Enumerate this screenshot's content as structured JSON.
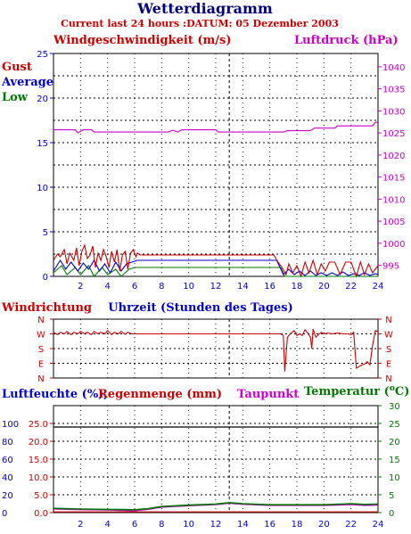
{
  "header": {
    "title": "Wetterdiagramm",
    "subtitle": "Current last 24 hours :DATUM: 05 Dezember 2003"
  },
  "colors": {
    "gust": "#cc0000",
    "average": "#0000cc",
    "low": "#007700",
    "pressure": "#cc00cc",
    "direction": "#cc0000",
    "humidity": "#0000cc",
    "rain": "#cc0000",
    "dewpoint": "#cc00cc",
    "temperature": "#007700"
  },
  "chart_data": [
    {
      "type": "line",
      "title": "",
      "labels": {
        "left_title": "Windgeschwindigkeit (m/s)",
        "right_title": "Luftdruck (hPa)",
        "legend_gust": "Gust",
        "legend_average": "Average",
        "legend_low": "Low"
      },
      "x_ticks": [
        "2",
        "4",
        "6",
        "8",
        "10",
        "12",
        "14",
        "16",
        "18",
        "20",
        "22",
        "24"
      ],
      "xlim": [
        0,
        24
      ],
      "left_ticks": [
        "0",
        "5",
        "10",
        "15",
        "20",
        "25"
      ],
      "ylim_left": [
        0,
        25
      ],
      "right_ticks": [
        "995",
        "1000",
        "1005",
        "1010",
        "1015",
        "1020",
        "1025",
        "1030",
        "1035",
        "1040"
      ],
      "ylim_right": [
        992.5,
        1043
      ],
      "grid": true,
      "series": [
        {
          "name": "Gust",
          "axis": "left",
          "x": [
            0,
            0.3,
            0.5,
            0.8,
            1.0,
            1.2,
            1.5,
            1.7,
            1.9,
            2.1,
            2.3,
            2.5,
            2.7,
            2.9,
            3.1,
            3.3,
            3.5,
            3.7,
            3.9,
            4.1,
            4.3,
            4.5,
            4.7,
            4.9,
            5.1,
            5.3,
            5.5,
            5.7,
            5.9,
            6.1,
            6.2,
            6.4,
            16.3,
            16.6,
            16.9,
            17.2,
            17.4,
            17.7,
            18.0,
            18.3,
            18.6,
            18.9,
            19.2,
            19.5,
            19.8,
            20.1,
            20.4,
            20.8,
            21.2,
            21.6,
            22.0,
            22.4,
            22.7,
            23.0,
            23.3,
            23.6,
            24.0
          ],
          "y": [
            1.8,
            2.5,
            2.2,
            3.0,
            1.4,
            2.6,
            1.8,
            3.2,
            1.2,
            2.8,
            3.5,
            2.0,
            2.4,
            3.4,
            1.0,
            2.6,
            1.8,
            3.0,
            2.2,
            1.0,
            2.8,
            1.6,
            3.0,
            0.6,
            2.4,
            2.8,
            0.8,
            2.6,
            3.0,
            2.2,
            2.6,
            2.4,
            2.4,
            1.6,
            1.0,
            0.2,
            1.4,
            0.4,
            1.2,
            0,
            1.6,
            0.4,
            1.8,
            0.2,
            1.4,
            0.6,
            1.6,
            1.6,
            0.2,
            1.6,
            1.6,
            0,
            1.6,
            0.2,
            1.4,
            0.4,
            1.2
          ]
        },
        {
          "name": "Average",
          "axis": "left",
          "x": [
            0,
            0.5,
            0.9,
            1.3,
            1.8,
            2.2,
            2.6,
            3.0,
            3.4,
            3.8,
            4.2,
            4.6,
            5.0,
            5.4,
            5.8,
            6.2,
            6.4,
            16.5,
            17.0,
            17.4,
            17.8,
            18.2,
            18.6,
            19.0,
            19.4,
            19.8,
            20.2,
            20.6,
            21.0,
            21.4,
            21.8,
            22.2,
            22.6,
            23.0,
            23.4,
            23.8,
            24.0
          ],
          "y": [
            0.6,
            1.8,
            0.8,
            1.6,
            0.6,
            1.5,
            0.8,
            1.8,
            0.6,
            1.4,
            0.4,
            1.6,
            0.6,
            1.4,
            1.6,
            1.8,
            1.8,
            1.8,
            0.2,
            0.8,
            0.2,
            0.6,
            0.1,
            0.6,
            0.1,
            0.4,
            0.1,
            0.4,
            0.1,
            0.5,
            0.1,
            0.3,
            0.1,
            0.4,
            0.1,
            0.3,
            0.2
          ]
        },
        {
          "name": "Low",
          "axis": "left",
          "x": [
            0,
            0.6,
            1.0,
            1.6,
            2.0,
            2.6,
            3.0,
            3.6,
            4.0,
            4.6,
            5.0,
            5.6,
            6.0,
            6.4,
            16.8,
            17.1,
            17.4,
            24.0
          ],
          "y": [
            0.4,
            1.2,
            0.2,
            1.0,
            0.2,
            1.2,
            0,
            1.0,
            0.2,
            0.8,
            0,
            0.8,
            1.0,
            1.0,
            1.0,
            0,
            0,
            0
          ]
        },
        {
          "name": "Luftdruck",
          "axis": "right",
          "x": [
            0,
            1.6,
            1.8,
            2.2,
            2.8,
            3.0,
            8.5,
            8.8,
            9.2,
            9.5,
            12.0,
            12.2,
            17.0,
            17.3,
            19.0,
            19.3,
            20.8,
            21.0,
            23.6,
            23.8,
            24.0
          ],
          "y": [
            1025.7,
            1025.7,
            1025.0,
            1025.7,
            1025.7,
            1025.2,
            1025.2,
            1025.6,
            1025.2,
            1025.7,
            1025.7,
            1025.2,
            1025.2,
            1025.5,
            1025.5,
            1026.1,
            1026.1,
            1026.6,
            1026.6,
            1027.4,
            1027.4
          ]
        }
      ]
    },
    {
      "type": "line",
      "title": "",
      "labels": {
        "left_title": "Windrichtung",
        "center_title": "Uhrzeit (Stunden des Tages)"
      },
      "xlim": [
        0,
        24
      ],
      "dir_ticks": [
        "N",
        "W",
        "S",
        "E",
        "N"
      ],
      "ylim": [
        0,
        360
      ],
      "grid": true,
      "series": [
        {
          "name": "Windrichtung",
          "x": [
            0,
            0.3,
            0.5,
            0.8,
            1.0,
            1.3,
            1.5,
            1.8,
            2.0,
            2.3,
            2.5,
            2.8,
            3.0,
            3.3,
            3.5,
            3.8,
            4.0,
            4.3,
            4.5,
            4.8,
            5.0,
            5.3,
            5.5,
            5.8,
            6.0,
            6.5,
            16.8,
            17.0,
            17.1,
            17.3,
            17.5,
            17.8,
            18.0,
            18.2,
            18.4,
            18.6,
            18.8,
            19.0,
            19.1,
            19.2,
            19.4,
            19.6,
            19.8,
            20.0,
            20.3,
            20.6,
            21.0,
            21.4,
            21.8,
            22.0,
            22.2,
            22.4,
            22.6,
            22.8,
            23.0,
            23.2,
            23.4,
            23.6,
            23.8,
            24.0
          ],
          "y": [
            280,
            265,
            280,
            270,
            285,
            265,
            280,
            270,
            285,
            270,
            280,
            265,
            285,
            270,
            280,
            270,
            290,
            265,
            280,
            270,
            285,
            268,
            280,
            270,
            270,
            270,
            270,
            260,
            40,
            250,
            270,
            290,
            260,
            270,
            260,
            295,
            275,
            250,
            180,
            300,
            250,
            265,
            280,
            270,
            275,
            270,
            275,
            270,
            270,
            265,
            280,
            60,
            70,
            80,
            85,
            100,
            80,
            200,
            290,
            285
          ]
        }
      ]
    },
    {
      "type": "line",
      "title": "",
      "labels": {
        "humidity_title": "Luftfeuchte (%),",
        "rain_title": "Regenmenge (mm)",
        "dewpoint_title": "Taupunkt",
        "temperature_title": "Temperatur (",
        "degree_symbol": "o",
        "temperature_unit": "C)"
      },
      "x_ticks": [
        "2",
        "4",
        "6",
        "8",
        "10",
        "12",
        "14",
        "16",
        "18",
        "20",
        "22",
        "24"
      ],
      "xlim": [
        0,
        24
      ],
      "humidity_ticks": [
        "0",
        "20",
        "40",
        "60",
        "80",
        "100"
      ],
      "rain_ticks": [
        "0.0",
        "5.0",
        "10.0",
        "15.0",
        "20.0",
        "25.0"
      ],
      "temperature_ticks": [
        "0",
        "5",
        "10",
        "15",
        "20",
        "25",
        "30"
      ],
      "ylim_temperature": [
        0,
        30
      ],
      "grid": true,
      "series": [
        {
          "name": "Regenmenge",
          "axis": "rain",
          "x": [
            0,
            24
          ],
          "y": [
            0.2,
            0.2
          ]
        },
        {
          "name": "Taupunkt",
          "axis": "temperature",
          "x": [
            0,
            2,
            4,
            6,
            7,
            8,
            10,
            12,
            13,
            14,
            16,
            18,
            20,
            22,
            23,
            24
          ],
          "y": [
            1.0,
            0.8,
            0.7,
            0.5,
            0.9,
            1.5,
            1.9,
            2.2,
            2.6,
            2.3,
            2.0,
            2.0,
            2.0,
            2.2,
            2.0,
            2.1
          ]
        },
        {
          "name": "Temperatur",
          "axis": "temperature",
          "x": [
            0,
            2,
            4,
            6,
            7,
            8,
            10,
            12,
            13,
            14,
            16,
            18,
            20,
            22,
            23,
            24
          ],
          "y": [
            1.2,
            1.0,
            0.9,
            0.8,
            1.1,
            1.7,
            2.1,
            2.4,
            2.8,
            2.5,
            2.2,
            2.2,
            2.2,
            2.5,
            2.3,
            2.4
          ]
        }
      ]
    }
  ]
}
